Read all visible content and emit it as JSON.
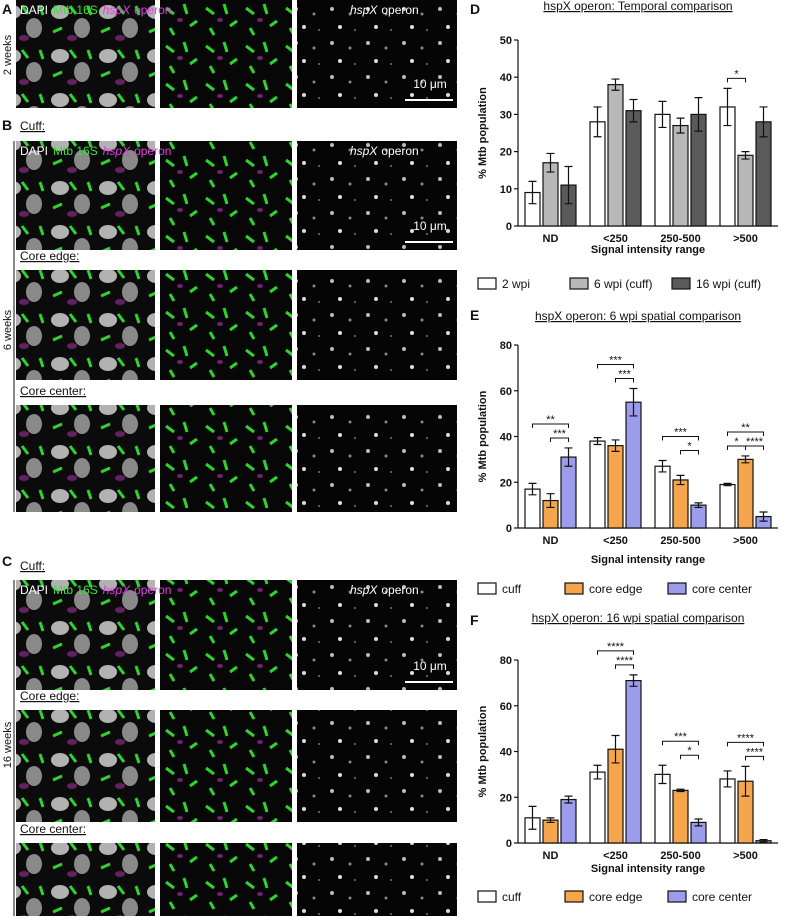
{
  "figure": {
    "panel_letters": [
      "A",
      "B",
      "C",
      "D",
      "E",
      "F"
    ],
    "time_labels": [
      "2 weeks",
      "6 weeks",
      "16 weeks"
    ],
    "region_labels": [
      "Cuff:",
      "Core edge:",
      "Core center:"
    ],
    "channels": {
      "dapi": "DAPI",
      "mtb": "Mtb 16S",
      "gene": "hspX",
      "operon": "operon"
    },
    "scale_bar": "10 μm"
  },
  "chart_data": [
    {
      "type": "bar",
      "title": "hspX operon: Temporal comparison",
      "y_label": "% Mtb population",
      "x_label": "Signal intensity range",
      "categories": [
        "ND",
        "<250",
        "250-500",
        ">500"
      ],
      "series": [
        {
          "name": "2 wpi",
          "color": "#ffffff",
          "values": [
            9,
            28,
            30,
            32
          ],
          "errors": [
            3,
            4,
            3.5,
            5
          ]
        },
        {
          "name": "6 wpi (cuff)",
          "color": "#b8b8b8",
          "values": [
            17,
            38,
            27,
            19
          ],
          "errors": [
            2.5,
            1.5,
            2,
            1
          ]
        },
        {
          "name": "16 wpi (cuff)",
          "color": "#5a5a5a",
          "values": [
            11,
            31,
            30,
            28
          ],
          "errors": [
            5,
            3,
            4.5,
            4
          ]
        }
      ],
      "ylim": [
        0,
        50
      ],
      "yticks": [
        0,
        10,
        20,
        30,
        40,
        50
      ],
      "grid": false,
      "annotations": [
        "*"
      ]
    },
    {
      "type": "bar",
      "title": "hspX operon: 6 wpi spatial comparison",
      "y_label": "% Mtb population",
      "x_label": "Signal intensity range",
      "categories": [
        "ND",
        "<250",
        "250-500",
        ">500"
      ],
      "series": [
        {
          "name": "cuff",
          "color": "#ffffff",
          "values": [
            17,
            38,
            27,
            19
          ],
          "errors": [
            2.5,
            1.5,
            2.5,
            0.5
          ]
        },
        {
          "name": "core edge",
          "color": "#f5a64c",
          "values": [
            12,
            36,
            21,
            30
          ],
          "errors": [
            3,
            2.5,
            2,
            1.5
          ]
        },
        {
          "name": "core center",
          "color": "#9c9cec",
          "values": [
            31,
            55,
            10,
            5
          ],
          "errors": [
            4,
            6,
            1,
            2
          ]
        }
      ],
      "ylim": [
        0,
        80
      ],
      "yticks": [
        0,
        20,
        40,
        60,
        80
      ],
      "grid": false,
      "annotations": [
        "**",
        "***",
        "***",
        "***",
        "***",
        "*",
        "**",
        "*",
        "****"
      ]
    },
    {
      "type": "bar",
      "title": "hspX operon: 16 wpi spatial comparison",
      "y_label": "% Mtb population",
      "x_label": "Signal intensity range",
      "categories": [
        "ND",
        "<250",
        "250-500",
        ">500"
      ],
      "series": [
        {
          "name": "cuff",
          "color": "#ffffff",
          "values": [
            11,
            31,
            30,
            28
          ],
          "errors": [
            5,
            3,
            4,
            3.5
          ]
        },
        {
          "name": "core edge",
          "color": "#f5a64c",
          "values": [
            10,
            41,
            23,
            27
          ],
          "errors": [
            1,
            6,
            0.5,
            6.5
          ]
        },
        {
          "name": "core center",
          "color": "#9c9cec",
          "values": [
            19,
            71,
            9,
            1
          ],
          "errors": [
            1.5,
            2.5,
            1.5,
            0.5
          ]
        }
      ],
      "ylim": [
        0,
        80
      ],
      "yticks": [
        0,
        20,
        40,
        60,
        80
      ],
      "grid": false,
      "annotations": [
        "****",
        "****",
        "***",
        "*",
        "****",
        "****"
      ]
    }
  ]
}
